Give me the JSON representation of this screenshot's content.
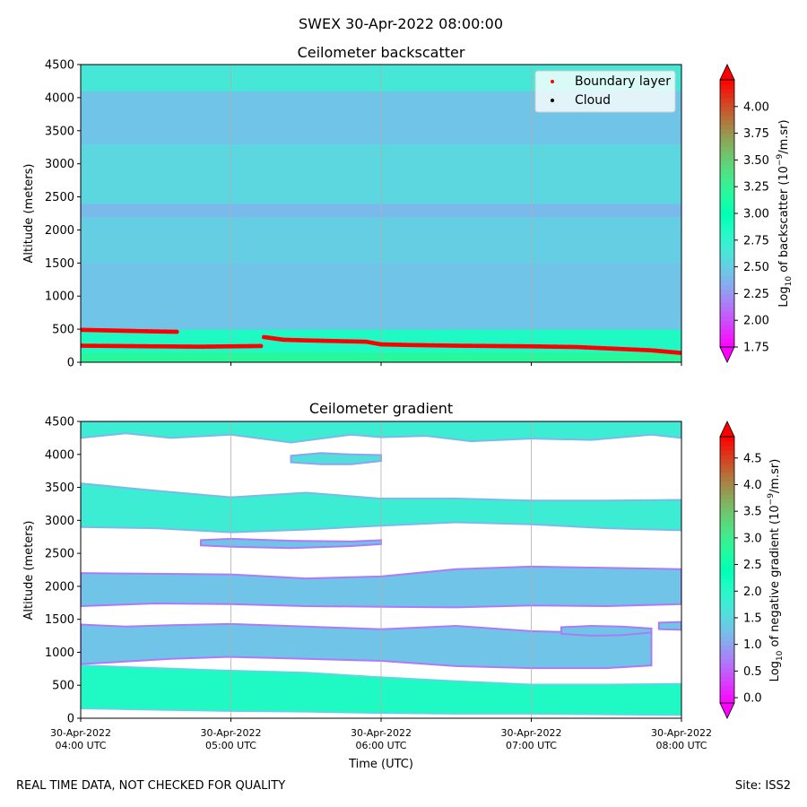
{
  "suptitle": "SWEX 30-Apr-2022 08:00:00",
  "footer_left": "REAL TIME DATA, NOT CHECKED FOR QUALITY",
  "footer_right": "Site: ISS2",
  "chart_data": [
    {
      "type": "heatmap",
      "title": "Ceilometer backscatter",
      "ylabel": "Altitude (meters)",
      "ylim": [
        0,
        4500
      ],
      "yticks": [
        0,
        500,
        1000,
        1500,
        2000,
        2500,
        3000,
        3500,
        4000,
        4500
      ],
      "xlim_hours": [
        4,
        8
      ],
      "colorbar": {
        "label": "Log10 of backscatter (10^-9/m.sr)",
        "label_main": "Log",
        "label_sub": "10",
        "label_rest": " of backscatter (10",
        "label_sup": "−9",
        "label_end": "/m.sr)",
        "range": [
          1.75,
          4.25
        ],
        "ticks": [
          "1.75",
          "2.00",
          "2.25",
          "2.50",
          "2.75",
          "3.00",
          "3.25",
          "3.50",
          "3.75",
          "4.00"
        ]
      },
      "legend": {
        "placement": "top-right",
        "entries": [
          {
            "label": "Boundary layer",
            "color": "#ff0000"
          },
          {
            "label": "Cloud",
            "color": "#000000"
          }
        ]
      },
      "field_bands": [
        {
          "alt_from": 0,
          "alt_to": 150,
          "value": 3.2
        },
        {
          "alt_from": 150,
          "alt_to": 500,
          "value": 2.85
        },
        {
          "alt_from": 500,
          "alt_to": 1500,
          "value": 2.45
        },
        {
          "alt_from": 1500,
          "alt_to": 2200,
          "value": 2.5
        },
        {
          "alt_from": 2200,
          "alt_to": 2400,
          "value": 2.4
        },
        {
          "alt_from": 2400,
          "alt_to": 3300,
          "value": 2.55
        },
        {
          "alt_from": 3300,
          "alt_to": 4100,
          "value": 2.45
        },
        {
          "alt_from": 4100,
          "alt_to": 4500,
          "value": 2.65
        }
      ],
      "boundary_layer": {
        "series": [
          {
            "name": "upper",
            "points": [
              [
                4.0,
                490
              ],
              [
                4.2,
                480
              ],
              [
                4.4,
                470
              ],
              [
                4.64,
                460
              ]
            ]
          },
          {
            "name": "lower",
            "points": [
              [
                4.0,
                250
              ],
              [
                4.5,
                240
              ],
              [
                4.8,
                235
              ],
              [
                5.2,
                245
              ]
            ]
          },
          {
            "name": "main",
            "points": [
              [
                5.22,
                380
              ],
              [
                5.35,
                340
              ],
              [
                5.5,
                330
              ],
              [
                5.7,
                320
              ],
              [
                5.9,
                310
              ],
              [
                6.0,
                270
              ],
              [
                6.2,
                260
              ],
              [
                6.5,
                250
              ],
              [
                7.0,
                240
              ],
              [
                7.3,
                230
              ],
              [
                7.5,
                210
              ],
              [
                7.8,
                180
              ],
              [
                8.0,
                140
              ]
            ]
          }
        ]
      }
    },
    {
      "type": "heatmap",
      "title": "Ceilometer gradient",
      "xlabel": "Time (UTC)",
      "ylabel": "Altitude (meters)",
      "ylim": [
        0,
        4500
      ],
      "yticks": [
        0,
        500,
        1000,
        1500,
        2000,
        2500,
        3000,
        3500,
        4000,
        4500
      ],
      "xlim_hours": [
        4,
        8
      ],
      "xticks": [
        {
          "hour": 4,
          "line1": "30-Apr-2022",
          "line2": "04:00 UTC"
        },
        {
          "hour": 5,
          "line1": "30-Apr-2022",
          "line2": "05:00 UTC"
        },
        {
          "hour": 6,
          "line1": "30-Apr-2022",
          "line2": "06:00 UTC"
        },
        {
          "hour": 7,
          "line1": "30-Apr-2022",
          "line2": "07:00 UTC"
        },
        {
          "hour": 8,
          "line1": "30-Apr-2022",
          "line2": "08:00 UTC"
        }
      ],
      "colorbar": {
        "label": "Log10 of negative gradient (10^-9/m.sr)",
        "label_main": "Log",
        "label_sub": "10",
        "label_rest": " of negative gradient (10",
        "label_sup": "−9",
        "label_end": "/m.sr)",
        "range": [
          -0.1,
          4.9
        ],
        "ticks": [
          "0.0",
          "0.5",
          "1.0",
          "1.5",
          "2.0",
          "2.5",
          "3.0",
          "3.5",
          "4.0",
          "4.5"
        ]
      },
      "layers": [
        {
          "t": [
            4,
            4.5,
            5,
            5.5,
            6,
            6.5,
            7,
            7.5,
            8
          ],
          "bottom": [
            150,
            130,
            110,
            100,
            80,
            70,
            70,
            60,
            50
          ],
          "top": [
            800,
            760,
            720,
            690,
            620,
            560,
            510,
            510,
            520
          ],
          "value": 2.1
        },
        {
          "t": [
            4,
            4.3,
            4.6,
            5,
            5.5,
            6,
            6.5,
            7,
            7.5,
            7.8
          ],
          "bottom": [
            820,
            860,
            900,
            930,
            900,
            870,
            790,
            760,
            760,
            800
          ],
          "top": [
            1420,
            1390,
            1410,
            1430,
            1390,
            1350,
            1400,
            1320,
            1290,
            1300
          ],
          "value": 1.3
        },
        {
          "t": [
            4,
            4.5,
            5,
            5.5,
            6,
            6.5,
            7,
            7.5,
            8
          ],
          "bottom": [
            1700,
            1740,
            1730,
            1700,
            1690,
            1680,
            1710,
            1700,
            1730
          ],
          "top": [
            2200,
            2190,
            2180,
            2120,
            2150,
            2260,
            2300,
            2280,
            2260
          ],
          "value": 1.3
        },
        {
          "t": [
            4,
            4.5,
            5,
            5.5,
            6,
            6.5,
            7,
            7.5,
            8
          ],
          "bottom": [
            2900,
            2880,
            2820,
            2860,
            2920,
            2970,
            2940,
            2880,
            2850
          ],
          "top": [
            3560,
            3450,
            3350,
            3420,
            3330,
            3330,
            3300,
            3300,
            3310
          ],
          "value": 1.8
        },
        {
          "t": [
            4.0,
            4.3,
            4.6,
            5.0,
            5.4,
            5.8,
            6.0,
            6.3,
            6.6,
            7.0,
            7.4,
            7.8,
            8.0
          ],
          "bottom": [
            4250,
            4320,
            4250,
            4300,
            4180,
            4300,
            4260,
            4280,
            4200,
            4240,
            4220,
            4300,
            4250
          ],
          "top": [
            4500,
            4500,
            4500,
            4500,
            4500,
            4500,
            4500,
            4500,
            4500,
            4500,
            4500,
            4500,
            4500
          ],
          "value": 1.8
        },
        {
          "t": [
            4.8,
            5.0,
            5.4,
            5.8,
            6.0
          ],
          "bottom": [
            2620,
            2600,
            2580,
            2610,
            2640
          ],
          "top": [
            2700,
            2720,
            2690,
            2680,
            2700
          ],
          "value": 1.3
        },
        {
          "t": [
            5.4,
            5.6,
            5.8,
            6.0
          ],
          "bottom": [
            3880,
            3850,
            3850,
            3900
          ],
          "top": [
            3980,
            4020,
            4000,
            3990
          ],
          "value": 1.6
        },
        {
          "t": [
            7.2,
            7.4,
            7.6,
            7.8
          ],
          "bottom": [
            1280,
            1250,
            1260,
            1300
          ],
          "top": [
            1380,
            1400,
            1390,
            1360
          ],
          "value": 1.3
        },
        {
          "t": [
            7.85,
            8.0
          ],
          "bottom": [
            1350,
            1340
          ],
          "top": [
            1450,
            1460
          ],
          "value": 1.3
        }
      ]
    }
  ]
}
